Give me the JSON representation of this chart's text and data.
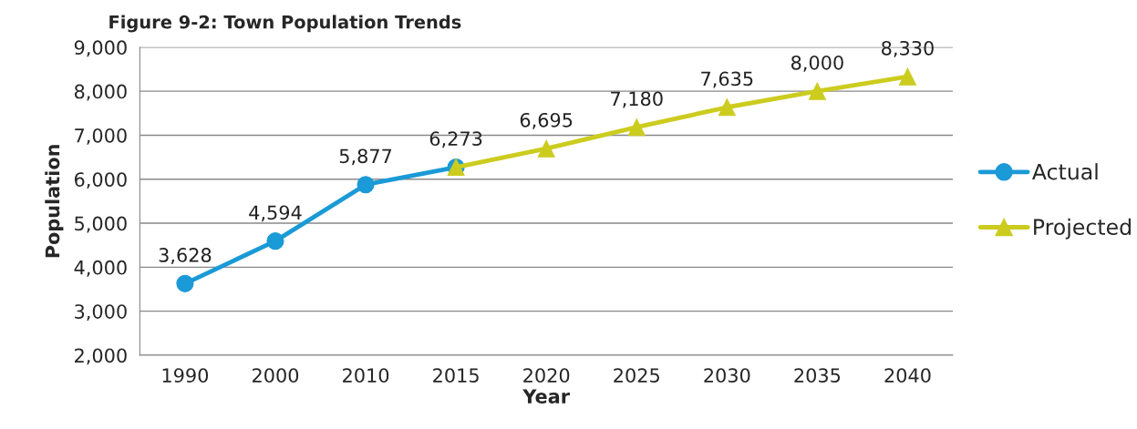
{
  "chart_data": {
    "type": "line",
    "title": "Figure 9-2: Town Population Trends",
    "xlabel": "Year",
    "ylabel": "Population",
    "categories": [
      "1990",
      "2000",
      "2010",
      "2015",
      "2020",
      "2025",
      "2030",
      "2035",
      "2040"
    ],
    "series": [
      {
        "name": "Actual",
        "color": "#1a9ad6",
        "marker": "circle",
        "values": [
          3628,
          4594,
          5877,
          6273,
          null,
          null,
          null,
          null,
          null
        ],
        "value_labels": [
          "3,628",
          "4,594",
          "5,877",
          "6,273",
          null,
          null,
          null,
          null,
          null
        ]
      },
      {
        "name": "Projected",
        "color": "#cccc1f",
        "marker": "triangle",
        "values": [
          null,
          null,
          null,
          6273,
          6695,
          7180,
          7635,
          8000,
          8330
        ],
        "value_labels": [
          null,
          null,
          null,
          null,
          "6,695",
          "7,180",
          "7,635",
          "8,000",
          "8,330"
        ]
      }
    ],
    "ylim": [
      2000,
      9000
    ],
    "yticks": [
      {
        "value": 2000,
        "label": "2,000"
      },
      {
        "value": 3000,
        "label": "3,000"
      },
      {
        "value": 4000,
        "label": "4,000"
      },
      {
        "value": 5000,
        "label": "5,000"
      },
      {
        "value": 6000,
        "label": "6,000"
      },
      {
        "value": 7000,
        "label": "7,000"
      },
      {
        "value": 8000,
        "label": "8,000"
      },
      {
        "value": 9000,
        "label": "9,000"
      }
    ],
    "grid": "y",
    "legend": "right",
    "line_style": "solid"
  }
}
